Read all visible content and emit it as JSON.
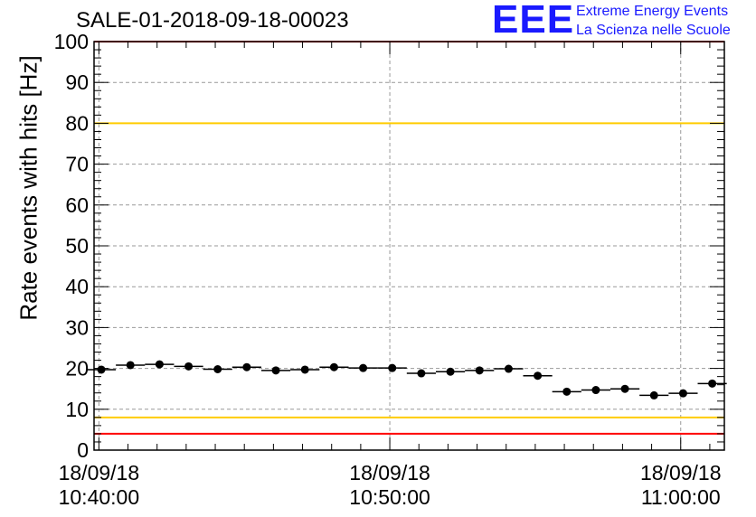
{
  "chart_data": {
    "type": "scatter",
    "title": "SALE-01-2018-09-18-00023",
    "ylabel": "Rate events with hits [Hz]",
    "xlabel": "",
    "ylim": [
      0,
      100
    ],
    "xlim": [
      "2018-09-18 10:39:50",
      "2018-09-18 11:01:30"
    ],
    "yticks": [
      0,
      10,
      20,
      30,
      40,
      50,
      60,
      70,
      80,
      90,
      100
    ],
    "xticks": [
      {
        "time": "2018-09-18 10:40:00",
        "date": "18/09/18",
        "clock": "10:40:00"
      },
      {
        "time": "2018-09-18 10:50:00",
        "date": "18/09/18",
        "clock": "10:50:00"
      },
      {
        "time": "2018-09-18 11:00:00",
        "date": "18/09/18",
        "clock": "11:00:00"
      }
    ],
    "grid": true,
    "reference_lines": [
      {
        "y": 80,
        "color": "#ffcc00"
      },
      {
        "y": 8,
        "color": "#ffcc00"
      },
      {
        "y": 100,
        "color": "#ff0000"
      },
      {
        "y": 4,
        "color": "#ff0000"
      }
    ],
    "series": [
      {
        "color": "#000000",
        "points": [
          {
            "x": "2018-09-18 10:40:05",
            "y": 19.7
          },
          {
            "x": "2018-09-18 10:41:05",
            "y": 20.8
          },
          {
            "x": "2018-09-18 10:42:05",
            "y": 21.0
          },
          {
            "x": "2018-09-18 10:43:05",
            "y": 20.5
          },
          {
            "x": "2018-09-18 10:44:05",
            "y": 19.8
          },
          {
            "x": "2018-09-18 10:45:05",
            "y": 20.3
          },
          {
            "x": "2018-09-18 10:46:05",
            "y": 19.5
          },
          {
            "x": "2018-09-18 10:47:05",
            "y": 19.7
          },
          {
            "x": "2018-09-18 10:48:05",
            "y": 20.3
          },
          {
            "x": "2018-09-18 10:49:05",
            "y": 20.1
          },
          {
            "x": "2018-09-18 10:50:05",
            "y": 20.1
          },
          {
            "x": "2018-09-18 10:51:05",
            "y": 18.8
          },
          {
            "x": "2018-09-18 10:52:05",
            "y": 19.2
          },
          {
            "x": "2018-09-18 10:53:05",
            "y": 19.5
          },
          {
            "x": "2018-09-18 10:54:05",
            "y": 19.9
          },
          {
            "x": "2018-09-18 10:55:05",
            "y": 18.2
          },
          {
            "x": "2018-09-18 10:56:05",
            "y": 14.3
          },
          {
            "x": "2018-09-18 10:57:05",
            "y": 14.7
          },
          {
            "x": "2018-09-18 10:58:05",
            "y": 15.0
          },
          {
            "x": "2018-09-18 10:59:05",
            "y": 13.4
          },
          {
            "x": "2018-09-18 11:00:05",
            "y": 13.9
          },
          {
            "x": "2018-09-18 11:01:05",
            "y": 16.3
          }
        ]
      }
    ]
  },
  "logo": {
    "mark": "EEE",
    "line1": "Extreme Energy Events",
    "line2": "La Scienza nelle Scuole",
    "color": "#1a1aff"
  }
}
